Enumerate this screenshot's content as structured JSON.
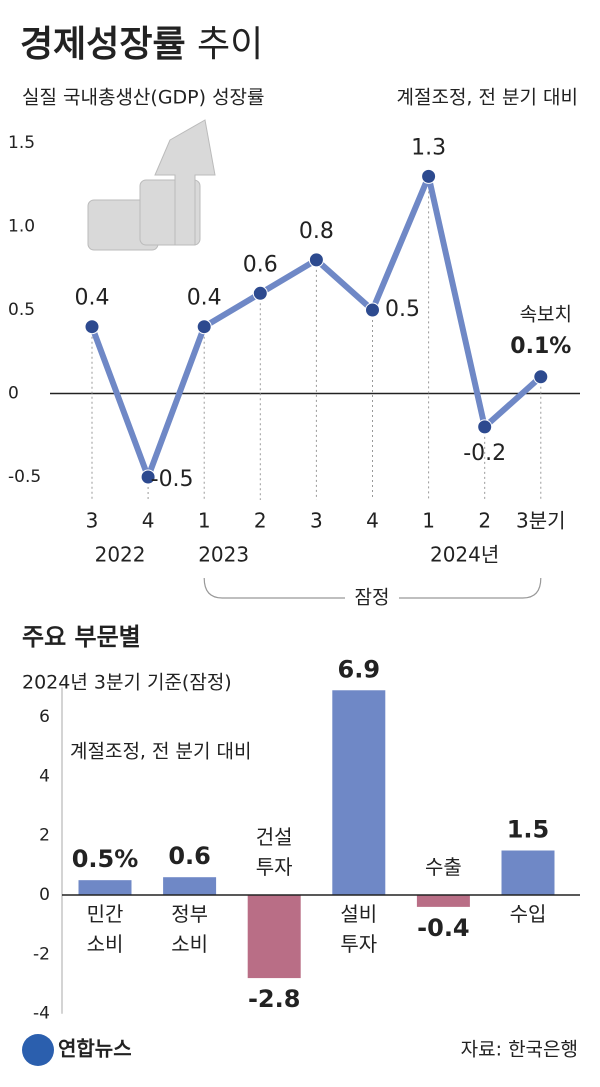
{
  "chart_data": [
    {
      "type": "line",
      "title": "경제성장률 추이",
      "subtitle": "실질 국내총생산(GDP) 성장률",
      "note": "계절조정, 전 분기 대비",
      "categories": [
        "3",
        "4",
        "1",
        "2",
        "3",
        "4",
        "1",
        "2",
        "3분기"
      ],
      "year_labels": [
        "2022",
        "2023",
        "2024년"
      ],
      "bracket_label": "잠정",
      "annotation": "속보치",
      "values": [
        0.4,
        -0.5,
        0.4,
        0.6,
        0.8,
        0.5,
        1.3,
        -0.2,
        0.1
      ],
      "value_labels": [
        "0.4",
        "-0.5",
        "0.4",
        "0.6",
        "0.8",
        "0.5",
        "1.3",
        "-0.2",
        "0.1%"
      ],
      "color": "#6f88c6",
      "ylim": [
        -0.5,
        1.5
      ],
      "yticks": [
        -0.5,
        0,
        0.5,
        {
          "value": 1,
          "label": "1.0"
        },
        1.5
      ]
    },
    {
      "type": "bar",
      "title": "주요 부문별",
      "subtitle": "2024년 3분기 기준(잠정)",
      "note": "계절조정, 전 분기 대비",
      "categories": [
        "민간 소비",
        "정부 소비",
        "건설 투자",
        "설비 투자",
        "수출",
        "수입"
      ],
      "values": [
        0.5,
        0.6,
        -2.8,
        6.9,
        -0.4,
        1.5
      ],
      "value_labels": [
        "0.5%",
        "0.6",
        "-2.8",
        "6.9",
        "-0.4",
        "1.5"
      ],
      "colors": [
        "#6f88c6",
        "#6f88c6",
        "#b96e86",
        "#6f88c6",
        "#b96e86",
        "#6f88c6"
      ],
      "ylim": [
        -4,
        7
      ],
      "yticks": [
        -4,
        -2,
        0,
        2,
        4,
        6
      ]
    }
  ],
  "footer": {
    "logo": "연합뉴스",
    "source": "자료: 한국은행"
  }
}
